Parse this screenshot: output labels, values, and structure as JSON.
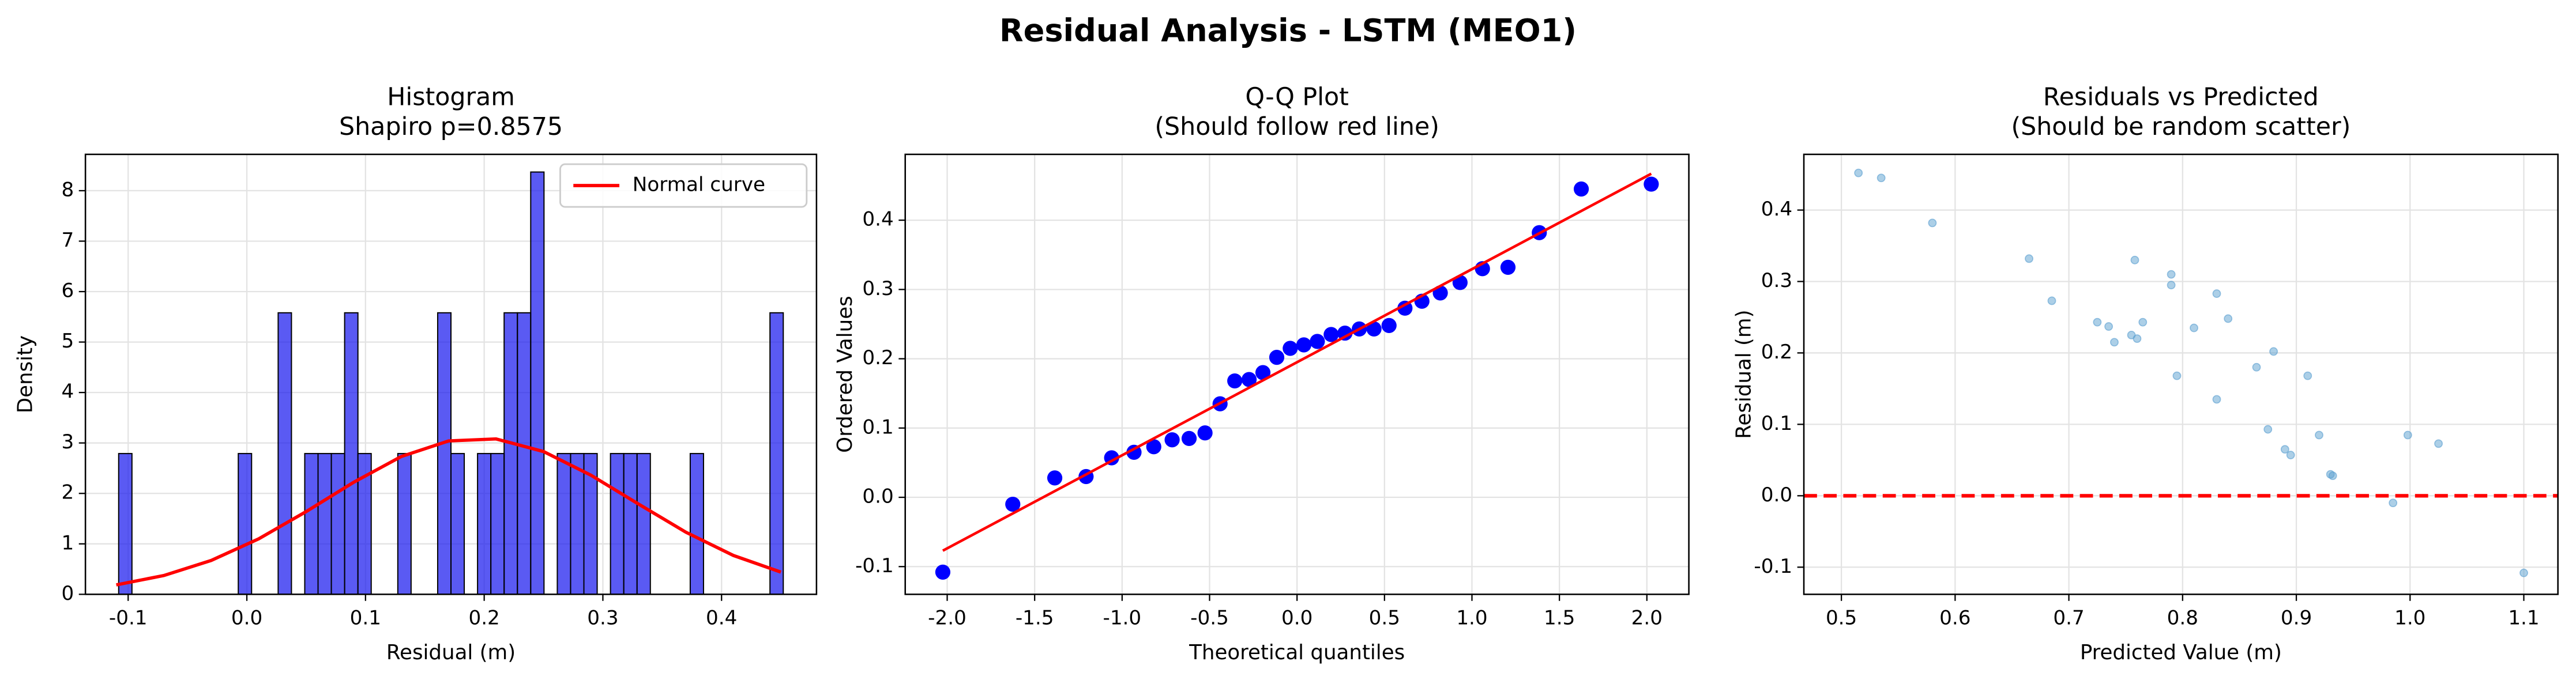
{
  "title": "Residual Analysis - LSTM (MEO1)",
  "chart_data": [
    {
      "type": "histogram",
      "title": [
        "Histogram",
        "Shapiro p=0.8575"
      ],
      "xlabel": "Residual (m)",
      "ylabel": "Density",
      "bins": [
        -0.108,
        -0.0968,
        -0.0856,
        -0.0744,
        -0.0632,
        -0.052,
        -0.0408,
        -0.0296,
        -0.0184,
        -0.0072,
        0.004,
        0.0152,
        0.0264,
        0.0376,
        0.0488,
        0.06,
        0.0712,
        0.0824,
        0.0936,
        0.1048,
        0.116,
        0.1272,
        0.1384,
        0.1496,
        0.1608,
        0.172,
        0.1832,
        0.1944,
        0.2056,
        0.2168,
        0.228,
        0.2392,
        0.2504,
        0.2616,
        0.2728,
        0.284,
        0.2952,
        0.3064,
        0.3176,
        0.3288,
        0.34,
        0.3512,
        0.3624,
        0.3736,
        0.3848,
        0.396,
        0.4072,
        0.4184,
        0.4296,
        0.4408,
        0.452
      ],
      "values": [
        2.79,
        0,
        0,
        0,
        0,
        0,
        0,
        0,
        0,
        2.79,
        0,
        0,
        5.58,
        0,
        2.79,
        2.79,
        2.79,
        5.58,
        2.79,
        0,
        0,
        2.79,
        0,
        0,
        5.58,
        2.79,
        0,
        2.79,
        2.79,
        5.58,
        5.58,
        8.37,
        0,
        2.79,
        2.79,
        2.79,
        0,
        2.79,
        2.79,
        2.79,
        0,
        0,
        0,
        2.79,
        0,
        0,
        0,
        0,
        0,
        5.58
      ],
      "color": "#1a1aee",
      "normal_curve": {
        "name": "Normal curve",
        "color": "#ff0000",
        "x": [
          -0.11,
          -0.07,
          -0.03,
          0.01,
          0.05,
          0.09,
          0.13,
          0.17,
          0.21,
          0.25,
          0.29,
          0.33,
          0.37,
          0.41,
          0.45
        ],
        "values": [
          0.187,
          0.372,
          0.672,
          1.1,
          1.64,
          2.22,
          2.73,
          3.04,
          3.08,
          2.83,
          2.36,
          1.79,
          1.23,
          0.77,
          0.44
        ]
      },
      "legend": "upper right",
      "xlim": [
        -0.136,
        0.48
      ],
      "ylim": [
        0,
        8.72
      ],
      "xticks": [
        -0.1,
        {
          "value": 0,
          "label": "0.0"
        },
        0.1,
        0.2,
        0.3,
        0.4
      ],
      "yticks": [
        0,
        1,
        2,
        3,
        4,
        5,
        6,
        7,
        8
      ],
      "grid": true
    },
    {
      "type": "qq",
      "title": [
        "Q-Q Plot",
        "(Should follow red line)"
      ],
      "xlabel": "Theoretical quantiles",
      "ylabel": "Ordered Values",
      "x": [
        -2.025,
        -1.625,
        -1.385,
        -1.206,
        -1.06,
        -0.932,
        -0.819,
        -0.714,
        -0.617,
        -0.526,
        -0.44,
        -0.356,
        -0.274,
        -0.195,
        -0.116,
        -0.039,
        0.039,
        0.116,
        0.195,
        0.274,
        0.356,
        0.44,
        0.526,
        0.617,
        0.714,
        0.819,
        0.932,
        1.06,
        1.206,
        1.385,
        1.625,
        2.025
      ],
      "values": [
        -0.108,
        -0.01,
        0.028,
        0.03,
        0.057,
        0.065,
        0.073,
        0.083,
        0.085,
        0.093,
        0.135,
        0.168,
        0.17,
        0.18,
        0.202,
        0.215,
        0.22,
        0.225,
        0.235,
        0.237,
        0.243,
        0.243,
        0.248,
        0.273,
        0.283,
        0.295,
        0.31,
        0.33,
        0.332,
        0.382,
        0.445,
        0.452
      ],
      "color": "#0000ff",
      "fit_line": {
        "color": "#ff0000",
        "x": [
          -2.025,
          2.025
        ],
        "values": [
          -0.077,
          0.467
        ]
      },
      "xlim": [
        -2.24,
        2.24
      ],
      "ylim": [
        -0.14,
        0.495
      ],
      "xticks": [
        {
          "value": -2,
          "label": "-2.0"
        },
        -1.5,
        {
          "value": -1,
          "label": "-1.0"
        },
        -0.5,
        {
          "value": 0,
          "label": "0.0"
        },
        0.5,
        {
          "value": 1,
          "label": "1.0"
        },
        1.5,
        {
          "value": 2,
          "label": "2.0"
        }
      ],
      "yticks": [
        -0.1,
        {
          "value": 0,
          "label": "0.0"
        },
        0.1,
        0.2,
        0.3,
        0.4
      ],
      "grid": true
    },
    {
      "type": "scatter",
      "title": [
        "Residuals vs Predicted",
        "(Should be random scatter)"
      ],
      "xlabel": "Predicted Value (m)",
      "ylabel": "Residual (m)",
      "x": [
        0.515,
        0.535,
        0.58,
        0.665,
        0.685,
        0.725,
        0.735,
        0.74,
        0.755,
        0.758,
        0.76,
        0.765,
        0.79,
        0.79,
        0.795,
        0.81,
        0.83,
        0.83,
        0.84,
        0.865,
        0.875,
        0.88,
        0.89,
        0.895,
        0.91,
        0.92,
        0.93,
        0.932,
        0.985,
        0.998,
        1.025,
        1.1
      ],
      "values": [
        0.452,
        0.445,
        0.382,
        0.332,
        0.273,
        0.243,
        0.237,
        0.215,
        0.225,
        0.33,
        0.22,
        0.243,
        0.31,
        0.295,
        0.168,
        0.235,
        0.283,
        0.135,
        0.248,
        0.18,
        0.093,
        0.202,
        0.065,
        0.057,
        0.168,
        0.085,
        0.03,
        0.028,
        -0.01,
        0.085,
        0.073,
        -0.108
      ],
      "color": "#5a9fd0",
      "reference_line": {
        "value": 0,
        "color": "#ff0000",
        "dashed": true
      },
      "xlim": [
        0.467,
        1.13
      ],
      "ylim": [
        -0.138,
        0.478
      ],
      "xticks": [
        0.5,
        0.6,
        0.7,
        0.8,
        0.9,
        {
          "value": 1,
          "label": "1.0"
        },
        1.1
      ],
      "yticks": [
        -0.1,
        {
          "value": 0,
          "label": "0.0"
        },
        0.1,
        0.2,
        0.3,
        0.4
      ],
      "grid": true
    }
  ]
}
